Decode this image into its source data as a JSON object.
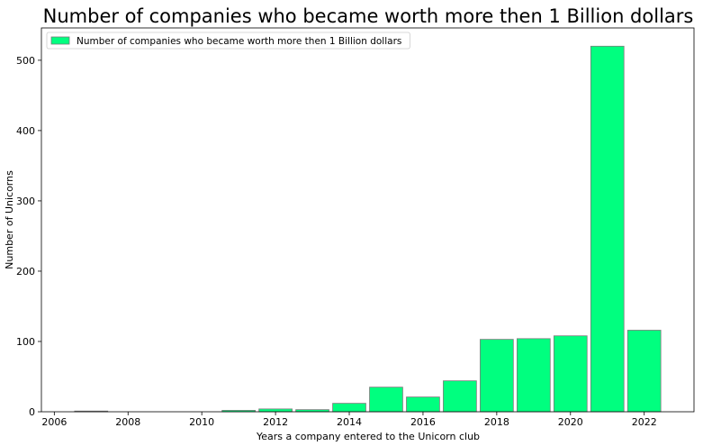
{
  "chart_data": {
    "type": "bar",
    "title": "Number of companies who became worth more then 1 Billion dollars",
    "xlabel": "Years a company entered to the Unicorn club",
    "ylabel": "Number of Unicorns",
    "legend_position": "top-left",
    "grid": false,
    "xlim": [
      2005.65,
      2023.35
    ],
    "ylim": [
      0,
      546
    ],
    "xticks": [
      2006,
      2008,
      2010,
      2012,
      2014,
      2016,
      2018,
      2020,
      2022
    ],
    "yticks": [
      0,
      100,
      200,
      300,
      400,
      500
    ],
    "bar_color": "#00ff7f",
    "bar_edge_color": "#7a7a7a",
    "series": [
      {
        "name": "Number of companies who became worth more then 1 Billion dollars",
        "x": [
          2007,
          2011,
          2012,
          2013,
          2014,
          2015,
          2016,
          2017,
          2018,
          2019,
          2020,
          2021,
          2022
        ],
        "values": [
          1,
          2,
          4,
          3,
          12,
          35,
          21,
          44,
          103,
          104,
          108,
          520,
          116
        ]
      }
    ]
  }
}
